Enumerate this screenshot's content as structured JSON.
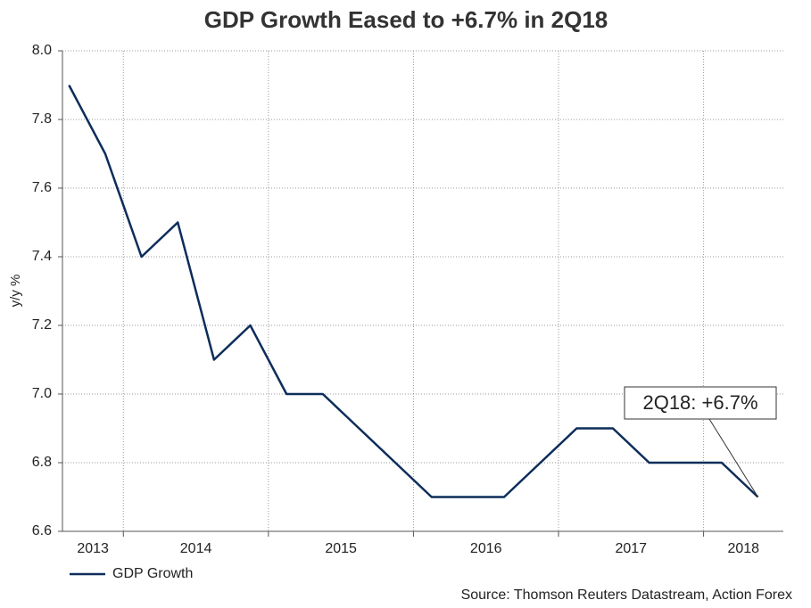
{
  "chart_data": {
    "type": "line",
    "title": "GDP Growth Eased to +6.7% in 2Q18",
    "ylabel": "y/y %",
    "source": "Source: Thomson Reuters Datastream, Action Forex",
    "annotation": "2Q18: +6.7%",
    "x": [
      2013.625,
      2013.875,
      2014.125,
      2014.375,
      2014.625,
      2014.875,
      2015.125,
      2015.375,
      2015.625,
      2015.875,
      2016.125,
      2016.375,
      2016.625,
      2016.875,
      2017.125,
      2017.375,
      2017.625,
      2017.875,
      2018.125,
      2018.375
    ],
    "series": [
      {
        "name": "GDP Growth",
        "color": "#0d2d5a",
        "values": [
          7.9,
          7.7,
          7.4,
          7.5,
          7.1,
          7.2,
          7.0,
          7.0,
          6.9,
          6.8,
          6.7,
          6.7,
          6.7,
          6.8,
          6.9,
          6.9,
          6.8,
          6.8,
          6.8,
          6.7
        ]
      }
    ],
    "xlim": [
      2013.58,
      2018.55
    ],
    "xticks": [
      2014,
      2015,
      2016,
      2017,
      2018
    ],
    "year_labels": [
      2013,
      2014,
      2015,
      2016,
      2017,
      2018
    ],
    "ylim": [
      6.6,
      8.0
    ],
    "yticks": [
      6.6,
      6.8,
      {
        "value": 7.0,
        "label": "7.0"
      },
      7.2,
      7.4,
      7.6,
      7.8,
      {
        "value": 8.0,
        "label": "8.0"
      }
    ],
    "grid": true,
    "legend": "bottom-left"
  }
}
